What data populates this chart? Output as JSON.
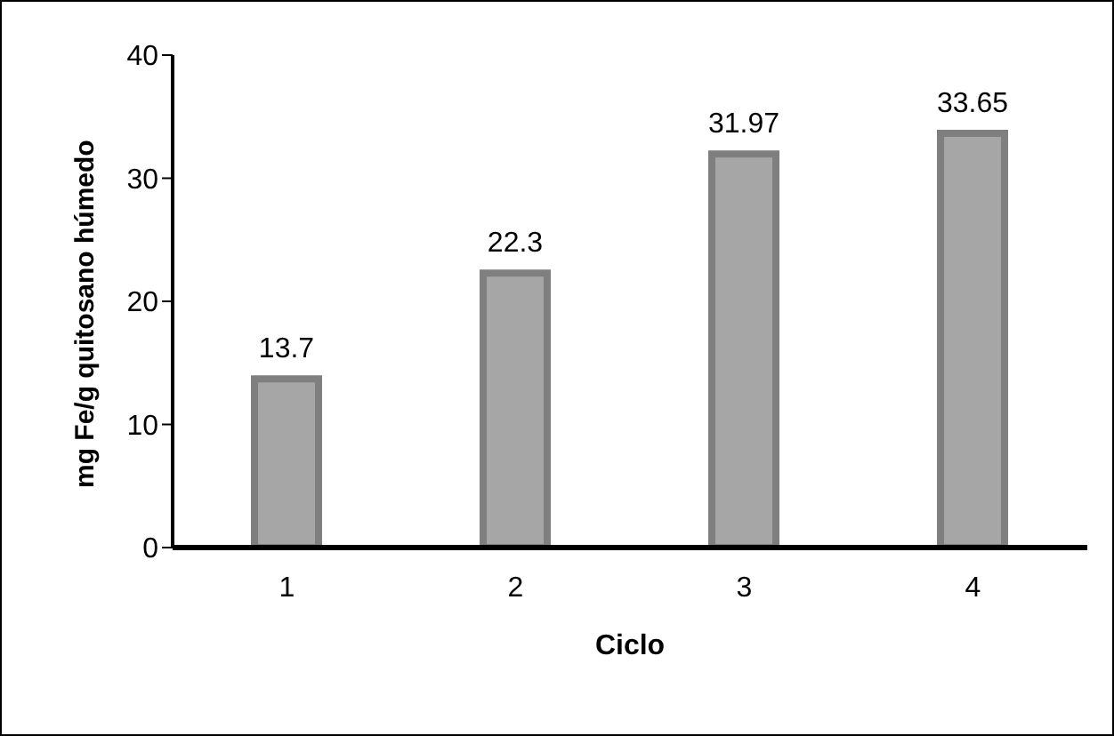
{
  "chart_data": {
    "type": "bar",
    "xlabel": "Ciclo",
    "ylabel": "mg Fe/g quitosano húmedo",
    "categories": [
      "1",
      "2",
      "3",
      "4"
    ],
    "values": [
      13.7,
      22.3,
      31.97,
      33.65
    ],
    "color": "#a6a6a6",
    "ylim": [
      0,
      40
    ],
    "yticks": [
      0,
      10,
      20,
      30,
      40
    ],
    "grid": false,
    "data_labels": true
  }
}
